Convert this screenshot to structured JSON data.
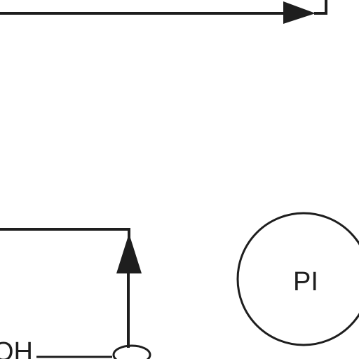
{
  "diagram": {
    "labels": {
      "pi_node": "PI",
      "partial_left": "OH"
    },
    "colors": {
      "line": "#1e1e1e",
      "background": "#ffffff"
    }
  }
}
